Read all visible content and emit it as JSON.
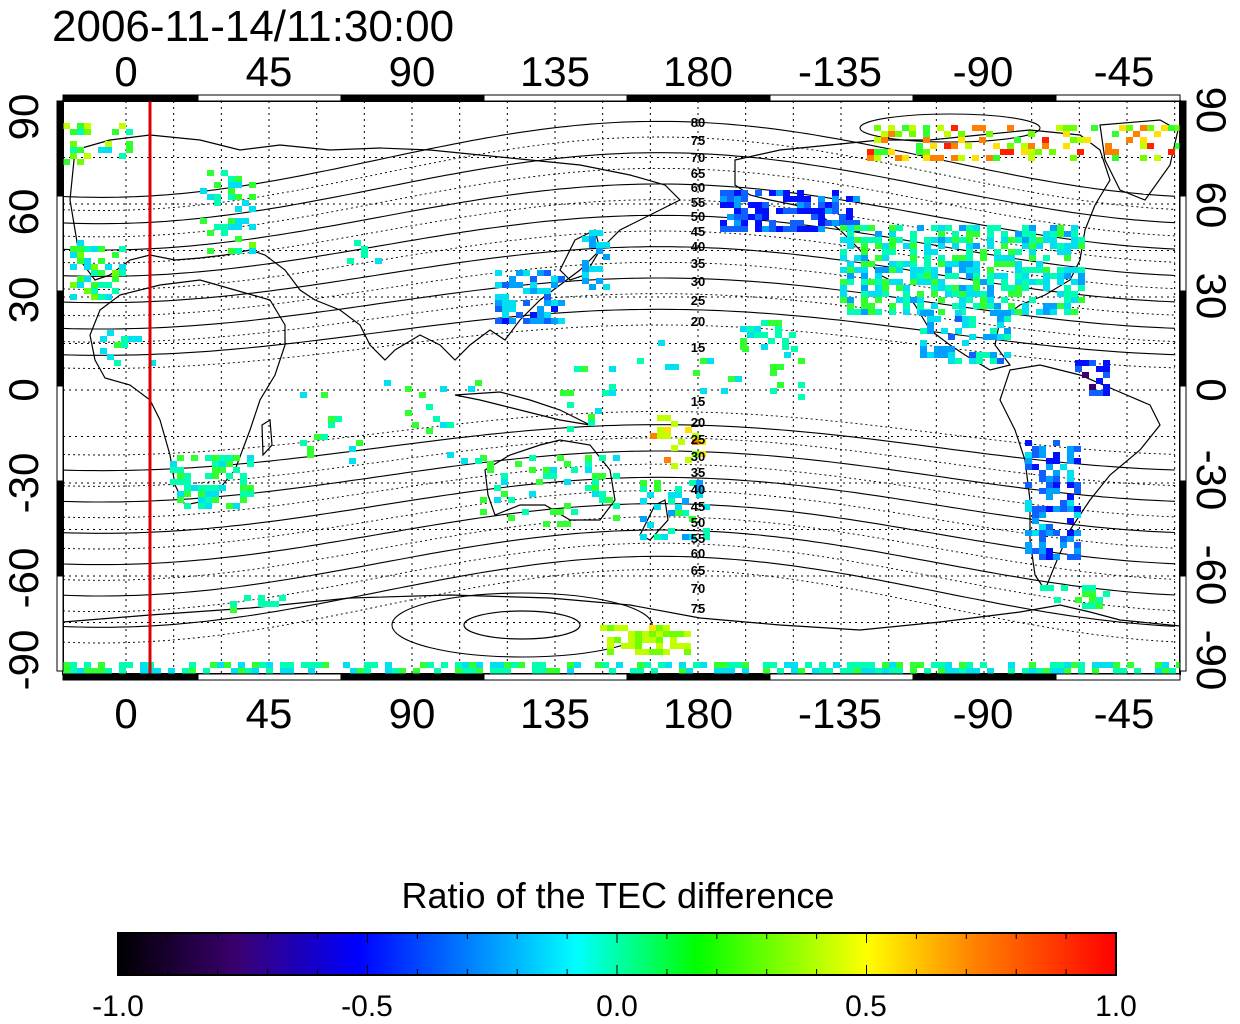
{
  "title": "2006-11-14/11:30:00",
  "map": {
    "lon_labels": [
      "0",
      "45",
      "90",
      "135",
      "180",
      "-135",
      "-90",
      "-45"
    ],
    "lat_labels_left": [
      "90",
      "60",
      "30",
      "0",
      "-30",
      "-60",
      "-90"
    ],
    "lat_labels_right": [
      "90",
      "60",
      "30",
      "0",
      "-30",
      "-60",
      "-90"
    ],
    "magnetic_latitude_labels_north": [
      "80",
      "75",
      "70",
      "65",
      "60",
      "55",
      "50",
      "45",
      "40",
      "35",
      "30",
      "25",
      "20",
      "15"
    ],
    "magnetic_latitude_labels_south": [
      "15",
      "20",
      "25",
      "30",
      "35",
      "40",
      "45",
      "50",
      "55",
      "60",
      "65",
      "70",
      "75"
    ],
    "noon_meridian_color": "#dd0000",
    "grid": "dotted"
  },
  "colorbar": {
    "label": "Ratio of the TEC difference",
    "tick_labels": [
      "-1.0",
      "-0.5",
      "0.0",
      "0.5",
      "1.0"
    ],
    "range": [
      -1.0,
      1.0
    ],
    "colors": [
      "#000000",
      "#3a0070",
      "#0000ff",
      "#00ffff",
      "#00ff00",
      "#ffff00",
      "#ff8000",
      "#ff0000"
    ]
  }
}
